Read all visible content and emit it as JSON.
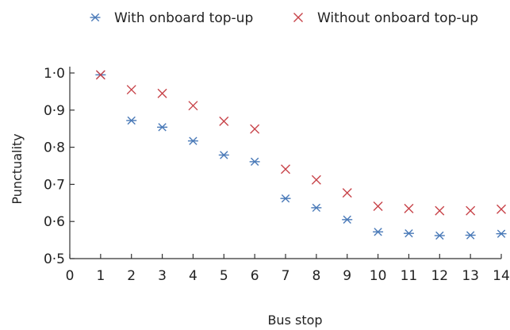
{
  "chart_data": {
    "type": "scatter",
    "title": "",
    "xlabel": "Bus stop",
    "ylabel": "Punctuality",
    "xlim": [
      0,
      14
    ],
    "ylim": [
      0.5,
      1.0
    ],
    "x_ticks": [
      0,
      1,
      2,
      3,
      4,
      5,
      6,
      7,
      8,
      9,
      10,
      11,
      12,
      13,
      14
    ],
    "x_tick_labels": [
      "0",
      "1",
      "2",
      "3",
      "4",
      "5",
      "6",
      "7",
      "8",
      "9",
      "10",
      "11",
      "12",
      "13",
      "14"
    ],
    "y_ticks": [
      0.5,
      0.6,
      0.7,
      0.8,
      0.9,
      1.0
    ],
    "y_tick_labels": [
      "0·5",
      "0·6",
      "0·7",
      "0·8",
      "0·9",
      "1·0"
    ],
    "grid": false,
    "legend_position": "top",
    "series": [
      {
        "name": "With onboard top-up",
        "marker": "asterisk",
        "color": "#4a7ab8",
        "x": [
          1,
          2,
          3,
          4,
          5,
          6,
          7,
          8,
          9,
          10,
          11,
          12,
          13,
          14
        ],
        "y": [
          0.995,
          0.872,
          0.854,
          0.817,
          0.779,
          0.761,
          0.662,
          0.637,
          0.605,
          0.572,
          0.568,
          0.562,
          0.563,
          0.567
        ]
      },
      {
        "name": "Without onboard top-up",
        "marker": "cross",
        "color": "#c8444a",
        "x": [
          1,
          2,
          3,
          4,
          5,
          6,
          7,
          8,
          9,
          10,
          11,
          12,
          13,
          14
        ],
        "y": [
          0.995,
          0.955,
          0.945,
          0.912,
          0.87,
          0.849,
          0.741,
          0.712,
          0.677,
          0.641,
          0.635,
          0.629,
          0.629,
          0.633
        ]
      }
    ]
  }
}
